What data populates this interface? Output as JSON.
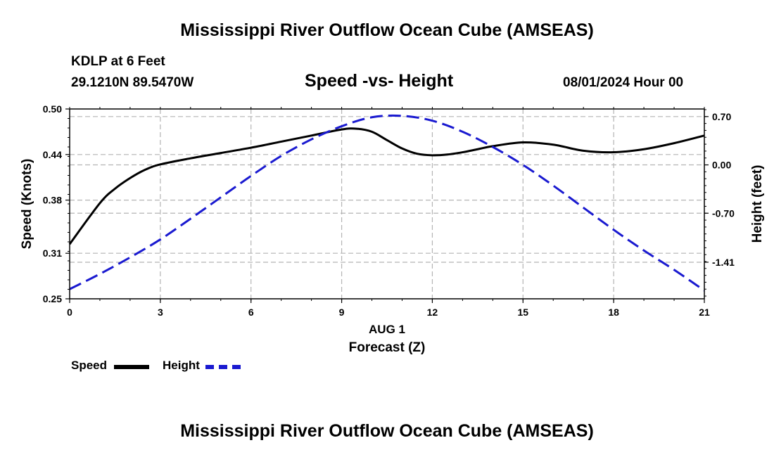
{
  "page_title": "Mississippi River Outflow Ocean Cube (AMSEAS)",
  "footer_title": "Mississippi River Outflow Ocean Cube (AMSEAS)",
  "station": {
    "name": "KDLP at 6 Feet",
    "coords": "29.1210N  89.5470W",
    "datetime": "08/01/2024 Hour 00"
  },
  "chart_data": {
    "type": "line",
    "title": "Speed -vs- Height",
    "xlabel": "Forecast (Z)",
    "date_label": "AUG 1",
    "ylabel": "Speed (Knots)",
    "y2label": "Height (feet)",
    "xlim": [
      0,
      21
    ],
    "ylim": [
      0.25,
      0.5
    ],
    "y2lim": [
      -1.94,
      0.81
    ],
    "grid": true,
    "x_ticks": [
      "0",
      "3",
      "6",
      "9",
      "12",
      "15",
      "18",
      "21"
    ],
    "y_ticks": [
      "0.25",
      "0.31",
      "0.38",
      "0.44",
      "0.50"
    ],
    "y2_ticks": [
      "0.70",
      "0.00",
      "-0.70",
      "-1.41"
    ],
    "series": [
      {
        "name": "Speed",
        "axis": "left",
        "color": "#000000",
        "style": "solid",
        "x": [
          0,
          1,
          1.5,
          2,
          2.5,
          3,
          4,
          5,
          6,
          7,
          8,
          9,
          9.5,
          10,
          10.5,
          11,
          11.5,
          12,
          12.5,
          13,
          13.5,
          14,
          15,
          16,
          17,
          18,
          19,
          20,
          21
        ],
        "values": [
          0.322,
          0.376,
          0.395,
          0.409,
          0.42,
          0.427,
          0.435,
          0.442,
          0.449,
          0.457,
          0.465,
          0.473,
          0.474,
          0.47,
          0.459,
          0.448,
          0.441,
          0.439,
          0.44,
          0.443,
          0.447,
          0.451,
          0.456,
          0.453,
          0.445,
          0.443,
          0.447,
          0.455,
          0.465
        ]
      },
      {
        "name": "Height",
        "axis": "right",
        "color": "#1a1ad0",
        "style": "dashed",
        "x": [
          0,
          1,
          2,
          3,
          4,
          5,
          6,
          7,
          8,
          9,
          10,
          11,
          12,
          13,
          14,
          15,
          16,
          17,
          18,
          19,
          20,
          21
        ],
        "values": [
          -1.8,
          -1.58,
          -1.34,
          -1.08,
          -0.78,
          -0.47,
          -0.16,
          0.13,
          0.37,
          0.56,
          0.69,
          0.71,
          0.64,
          0.48,
          0.26,
          0.0,
          -0.3,
          -0.62,
          -0.94,
          -1.24,
          -1.52,
          -1.82
        ]
      }
    ]
  }
}
